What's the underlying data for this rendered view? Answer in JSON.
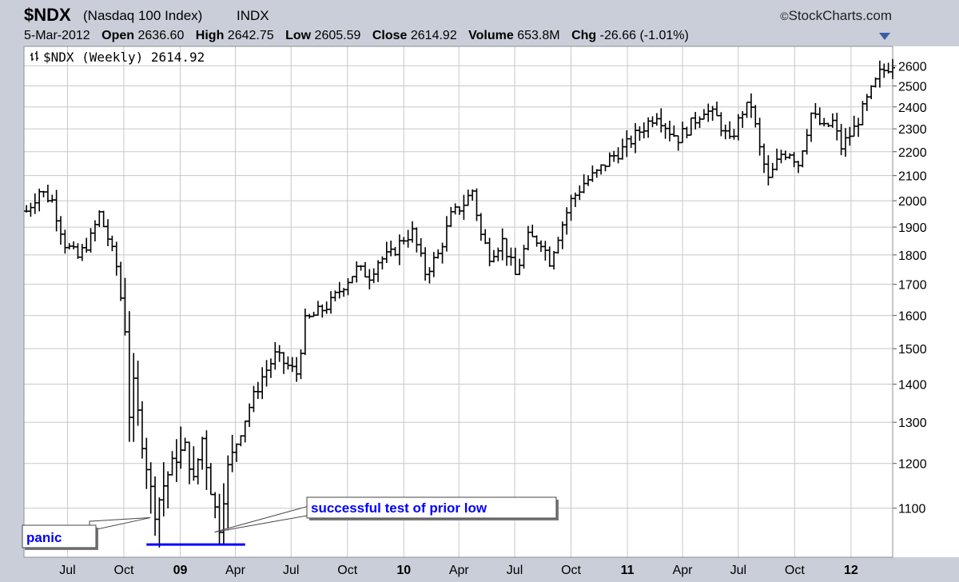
{
  "header": {
    "symbol": "$NDX",
    "name": "(Nasdaq 100 Index)",
    "exchange": "INDX",
    "brand": "StockCharts.com",
    "brand_mark": "©",
    "date": "5-Mar-2012",
    "open_label": "Open",
    "open": "2636.60",
    "high_label": "High",
    "high": "2642.75",
    "low_label": "Low",
    "low": "2605.59",
    "close_label": "Close",
    "close": "2614.92",
    "volume_label": "Volume",
    "volume": "653.8M",
    "chg_label": "Chg",
    "chg": "-26.66 (-1.01%)"
  },
  "colors": {
    "bars": "#000000",
    "annotation": "#0000ff",
    "grid": "#c8c8c8",
    "frame_bg": "#c9ced8",
    "plot_bg": "#ffffff"
  },
  "chart_data": {
    "type": "ohlc-bar",
    "legend": "$NDX (Weekly) 2614.92",
    "legend_icon": "ohlc-bars-icon",
    "y_scale": "log",
    "ylim": [
      1000,
      2700
    ],
    "y_ticks": [
      1100,
      1200,
      1300,
      1400,
      1500,
      1600,
      1700,
      1800,
      1900,
      2000,
      2100,
      2200,
      2300,
      2400,
      2500,
      2600
    ],
    "x_range": [
      "2008-04-21",
      "2012-03-09"
    ],
    "x_ticks": [
      {
        "date": "2008-07-01",
        "label": "Jul",
        "bold": false
      },
      {
        "date": "2008-10-01",
        "label": "Oct",
        "bold": false
      },
      {
        "date": "2009-01-01",
        "label": "09",
        "bold": true
      },
      {
        "date": "2009-04-01",
        "label": "Apr",
        "bold": false
      },
      {
        "date": "2009-07-01",
        "label": "Jul",
        "bold": false
      },
      {
        "date": "2009-10-01",
        "label": "Oct",
        "bold": false
      },
      {
        "date": "2010-01-01",
        "label": "10",
        "bold": true
      },
      {
        "date": "2010-04-01",
        "label": "Apr",
        "bold": false
      },
      {
        "date": "2010-07-01",
        "label": "Jul",
        "bold": false
      },
      {
        "date": "2010-10-01",
        "label": "Oct",
        "bold": false
      },
      {
        "date": "2011-01-01",
        "label": "11",
        "bold": true
      },
      {
        "date": "2011-04-01",
        "label": "Apr",
        "bold": false
      },
      {
        "date": "2011-07-01",
        "label": "Jul",
        "bold": false
      },
      {
        "date": "2011-10-01",
        "label": "Oct",
        "bold": false
      },
      {
        "date": "2012-01-01",
        "label": "12",
        "bold": true
      }
    ],
    "price_path": [
      [
        "2008-04-25",
        1960
      ],
      [
        "2008-05-16",
        2040
      ],
      [
        "2008-06-06",
        2000
      ],
      [
        "2008-06-27",
        1840
      ],
      [
        "2008-07-18",
        1790
      ],
      [
        "2008-08-08",
        1860
      ],
      [
        "2008-08-22",
        1950
      ],
      [
        "2008-09-05",
        1860
      ],
      [
        "2008-09-19",
        1760
      ],
      [
        "2008-10-03",
        1560
      ],
      [
        "2008-10-10",
        1320
      ],
      [
        "2008-10-17",
        1400
      ],
      [
        "2008-10-31",
        1250
      ],
      [
        "2008-11-21",
        1090
      ],
      [
        "2008-12-05",
        1150
      ],
      [
        "2008-12-19",
        1200
      ],
      [
        "2009-01-09",
        1240
      ],
      [
        "2009-01-23",
        1160
      ],
      [
        "2009-02-06",
        1260
      ],
      [
        "2009-02-20",
        1140
      ],
      [
        "2009-03-06",
        1060
      ],
      [
        "2009-03-20",
        1190
      ],
      [
        "2009-04-03",
        1250
      ],
      [
        "2009-04-24",
        1340
      ],
      [
        "2009-05-15",
        1420
      ],
      [
        "2009-06-05",
        1480
      ],
      [
        "2009-06-26",
        1450
      ],
      [
        "2009-07-10",
        1430
      ],
      [
        "2009-07-24",
        1580
      ],
      [
        "2009-08-14",
        1610
      ],
      [
        "2009-09-04",
        1640
      ],
      [
        "2009-09-25",
        1700
      ],
      [
        "2009-10-16",
        1750
      ],
      [
        "2009-11-06",
        1730
      ],
      [
        "2009-11-20",
        1780
      ],
      [
        "2009-12-11",
        1800
      ],
      [
        "2010-01-01",
        1860
      ],
      [
        "2010-01-15",
        1880
      ],
      [
        "2010-02-05",
        1740
      ],
      [
        "2010-02-26",
        1800
      ],
      [
        "2010-03-19",
        1940
      ],
      [
        "2010-04-09",
        1990
      ],
      [
        "2010-04-23",
        2040
      ],
      [
        "2010-05-07",
        1870
      ],
      [
        "2010-05-21",
        1800
      ],
      [
        "2010-06-11",
        1850
      ],
      [
        "2010-07-02",
        1730
      ],
      [
        "2010-07-23",
        1860
      ],
      [
        "2010-08-13",
        1850
      ],
      [
        "2010-08-27",
        1780
      ],
      [
        "2010-09-10",
        1870
      ],
      [
        "2010-10-01",
        2000
      ],
      [
        "2010-10-22",
        2070
      ],
      [
        "2010-11-12",
        2110
      ],
      [
        "2010-12-03",
        2170
      ],
      [
        "2010-12-24",
        2210
      ],
      [
        "2011-01-21",
        2290
      ],
      [
        "2011-02-18",
        2370
      ],
      [
        "2011-03-11",
        2290
      ],
      [
        "2011-03-25",
        2260
      ],
      [
        "2011-04-15",
        2320
      ],
      [
        "2011-05-06",
        2390
      ],
      [
        "2011-05-27",
        2350
      ],
      [
        "2011-06-17",
        2240
      ],
      [
        "2011-07-08",
        2380
      ],
      [
        "2011-07-22",
        2410
      ],
      [
        "2011-08-05",
        2210
      ],
      [
        "2011-08-19",
        2080
      ],
      [
        "2011-09-09",
        2190
      ],
      [
        "2011-09-23",
        2200
      ],
      [
        "2011-10-07",
        2150
      ],
      [
        "2011-10-28",
        2370
      ],
      [
        "2011-11-18",
        2300
      ],
      [
        "2011-12-02",
        2330
      ],
      [
        "2011-12-16",
        2220
      ],
      [
        "2012-01-06",
        2300
      ],
      [
        "2012-01-27",
        2430
      ],
      [
        "2012-02-17",
        2560
      ],
      [
        "2012-03-09",
        2614
      ]
    ],
    "annotations": [
      {
        "text": "panic",
        "points_to": [
          "2008-11-21",
          1090
        ]
      },
      {
        "text": "successful test of prior low",
        "points_to": [
          "2009-03-06",
          1060
        ]
      }
    ],
    "support_line": {
      "y": 1025,
      "from": "2008-11-07",
      "to": "2009-04-17"
    }
  }
}
